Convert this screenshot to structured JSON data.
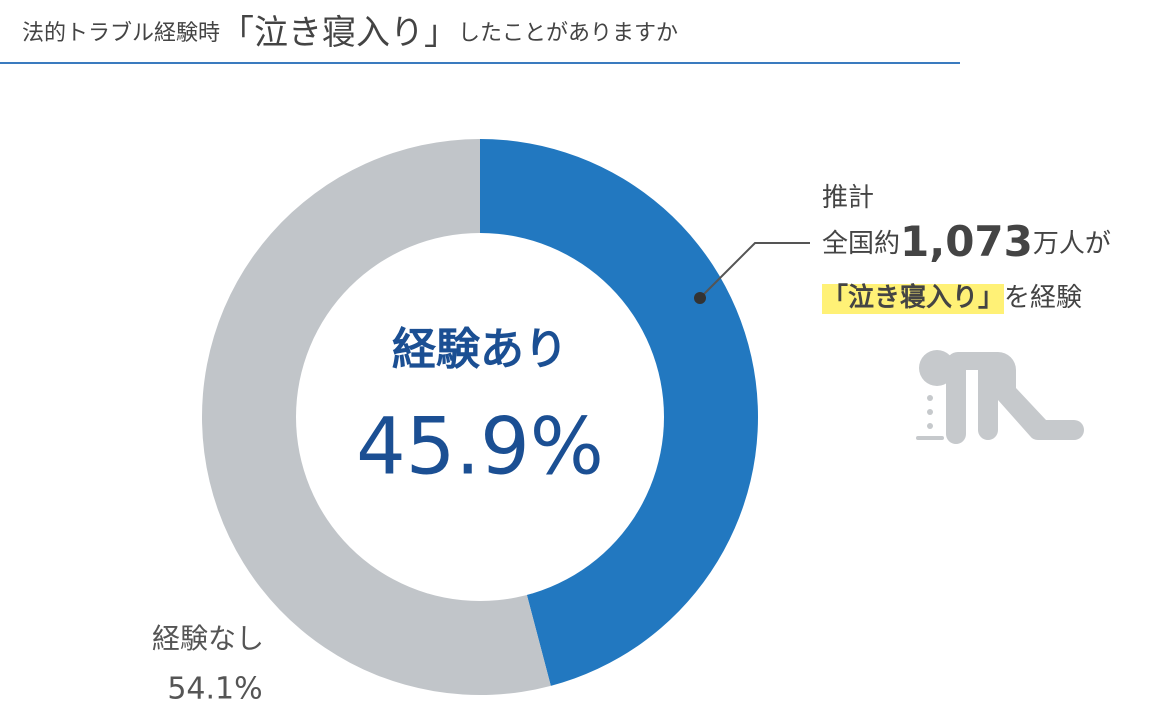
{
  "chart_data": {
    "type": "donut",
    "title": [
      "法的トラブル経験時",
      "「泣き寝入り」",
      "したことがありますか"
    ],
    "categories": [
      "経験あり",
      "経験なし"
    ],
    "values": [
      45.9,
      54.1
    ],
    "value_labels": [
      "45.9%",
      "54.1%"
    ],
    "colors": [
      "#2278c0",
      "#c1c5c9"
    ],
    "annotation": [
      [
        "推計"
      ],
      [
        "全国約",
        "1,073",
        "万人が"
      ],
      [
        "「泣き寝入り」",
        "を経験"
      ]
    ]
  }
}
